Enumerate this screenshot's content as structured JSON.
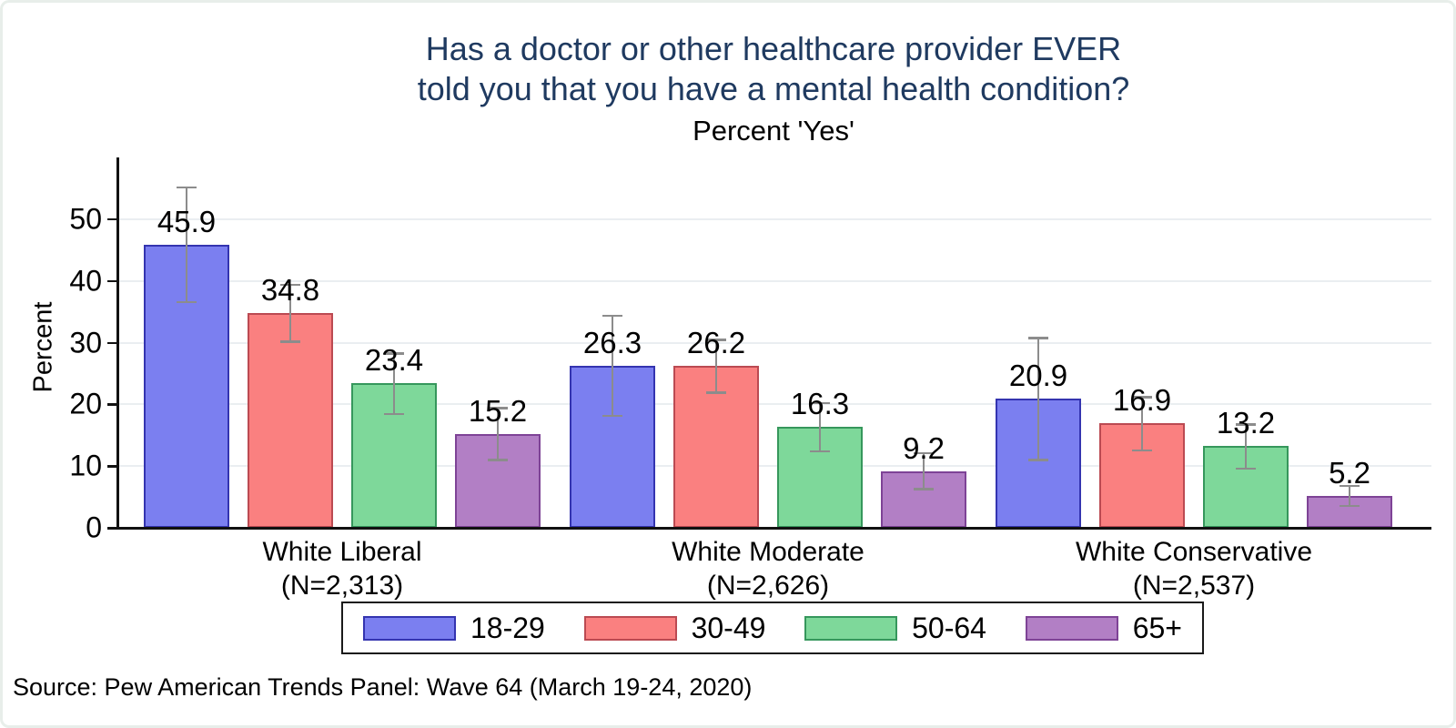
{
  "header": {
    "title_line1": "Has a doctor or other healthcare provider EVER",
    "title_line2": "told you that you have a mental health condition?",
    "subtitle": "Percent 'Yes'"
  },
  "footer": {
    "source": "Source: Pew American Trends Panel: Wave 64 (March 19-24, 2020)"
  },
  "chart_data": {
    "type": "bar",
    "title": "Has a doctor or other healthcare provider EVER told you that you have a mental health condition?",
    "subtitle": "Percent 'Yes'",
    "ylabel": "Percent",
    "ylim": [
      0,
      60
    ],
    "yticks": [
      0,
      10,
      20,
      30,
      40,
      50
    ],
    "grid": "horizontal",
    "legend_position": "bottom-center",
    "error_bars": true,
    "error_bar_color": "#8c8c8c",
    "categories": [
      {
        "label": "White Liberal",
        "n_label": "(N=2,313)"
      },
      {
        "label": "White Moderate",
        "n_label": "(N=2,626)"
      },
      {
        "label": "White Conservative",
        "n_label": "(N=2,537)"
      }
    ],
    "series": [
      {
        "name": "18-29",
        "fill": "#7b7ff0",
        "stroke": "#3434b0",
        "values": [
          45.9,
          26.3,
          20.9
        ],
        "ci_low": [
          36.6,
          18.2,
          11.0
        ],
        "ci_high": [
          55.2,
          34.4,
          30.8
        ]
      },
      {
        "name": "30-49",
        "fill": "#fa8080",
        "stroke": "#bb4a52",
        "values": [
          34.8,
          26.2,
          16.9
        ],
        "ci_low": [
          30.2,
          21.9,
          12.6
        ],
        "ci_high": [
          39.4,
          30.5,
          21.2
        ]
      },
      {
        "name": "50-64",
        "fill": "#7ed89a",
        "stroke": "#36975c",
        "values": [
          23.4,
          16.3,
          13.2
        ],
        "ci_low": [
          18.5,
          12.4,
          9.6
        ],
        "ci_high": [
          28.3,
          20.2,
          16.8
        ]
      },
      {
        "name": "65+",
        "fill": "#b27fc5",
        "stroke": "#7e4396",
        "values": [
          15.2,
          9.2,
          5.2
        ],
        "ci_low": [
          11.0,
          6.3,
          3.6
        ],
        "ci_high": [
          19.4,
          12.1,
          6.8
        ]
      }
    ]
  }
}
